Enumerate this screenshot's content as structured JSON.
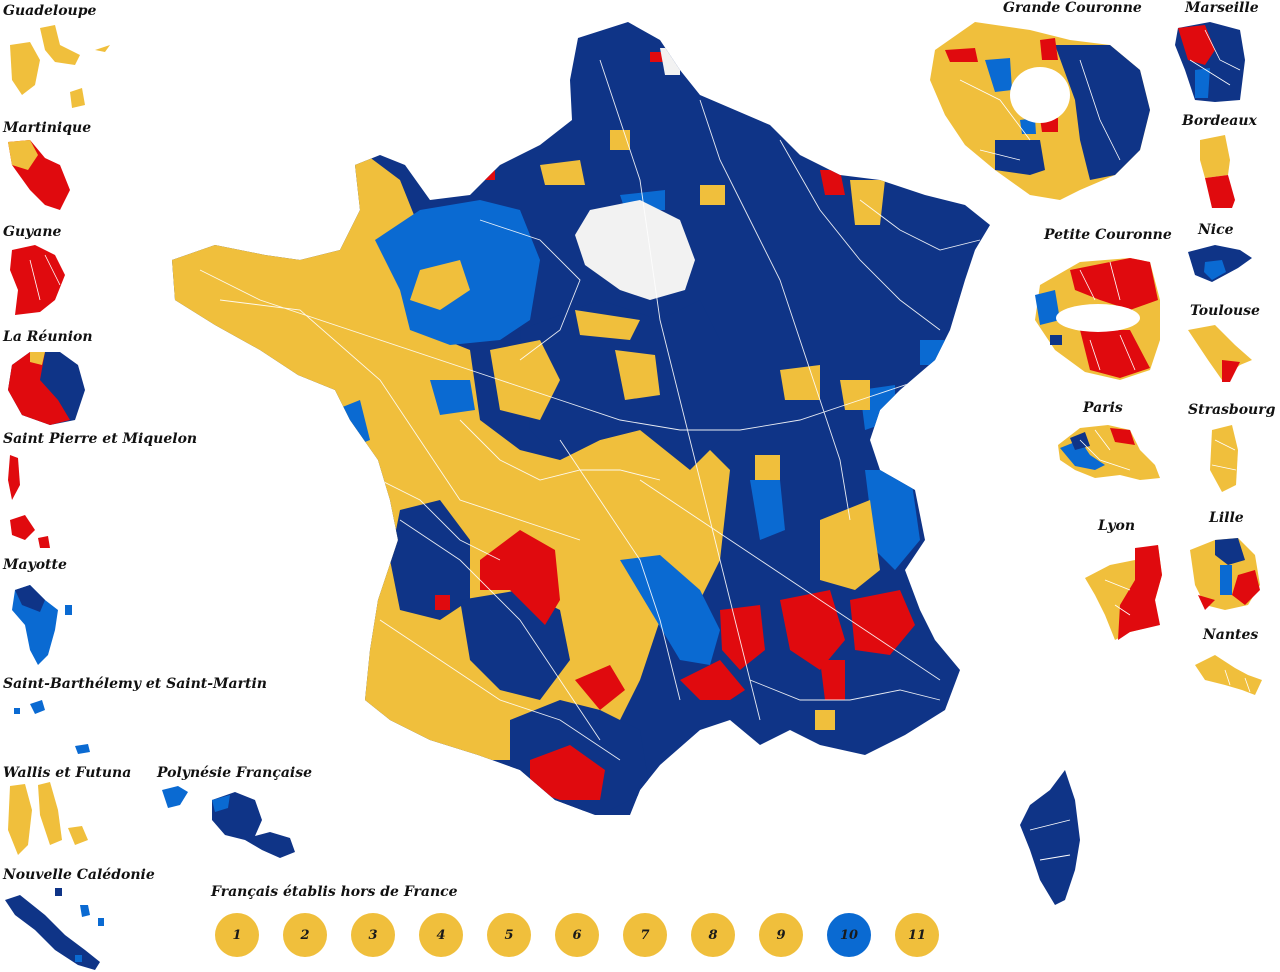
{
  "colors": {
    "yellow": "#f0bf3c",
    "dark_blue": "#0f3487",
    "light_blue": "#0a6ad2",
    "red": "#e00a0e",
    "grey": "#f2f2f2"
  },
  "labels": {
    "guadeloupe": "Guadeloupe",
    "martinique": "Martinique",
    "guyane": "Guyane",
    "la_reunion": "La Réunion",
    "saint_pierre": "Saint Pierre et Miquelon",
    "mayotte": "Mayotte",
    "saint_barth": "Saint-Barthélemy et Saint-Martin",
    "wallis": "Wallis et Futuna",
    "polynesie": "Polynésie Française",
    "nouvelle_caledonie": "Nouvelle Calédonie",
    "grande_couronne": "Grande Couronne",
    "marseille": "Marseille",
    "bordeaux": "Bordeaux",
    "petite_couronne": "Petite Couronne",
    "nice": "Nice",
    "toulouse": "Toulouse",
    "paris": "Paris",
    "strasbourg": "Strasbourg",
    "lyon": "Lyon",
    "lille": "Lille",
    "nantes": "Nantes",
    "francais_etranger": "Français établis hors de France"
  },
  "abroad": [
    {
      "label": "1",
      "color": "yellow"
    },
    {
      "label": "2",
      "color": "yellow"
    },
    {
      "label": "3",
      "color": "yellow"
    },
    {
      "label": "4",
      "color": "yellow"
    },
    {
      "label": "5",
      "color": "yellow"
    },
    {
      "label": "6",
      "color": "yellow"
    },
    {
      "label": "7",
      "color": "yellow"
    },
    {
      "label": "8",
      "color": "yellow"
    },
    {
      "label": "9",
      "color": "yellow"
    },
    {
      "label": "10",
      "color": "light_blue"
    },
    {
      "label": "11",
      "color": "yellow"
    }
  ]
}
